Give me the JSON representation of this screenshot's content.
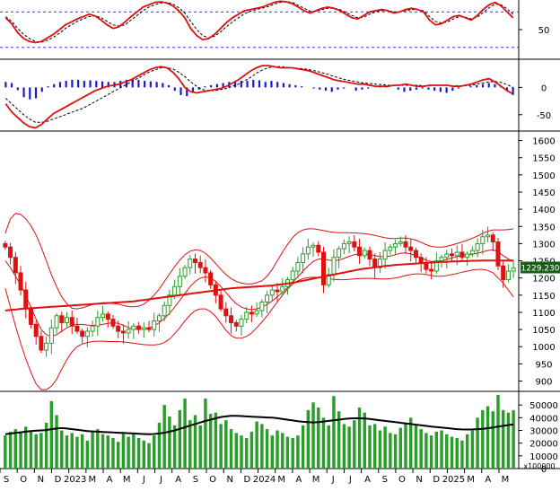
{
  "chart_data": [
    {
      "type": "line",
      "panel": "stochastic-oscillator",
      "y_ticks": [
        50
      ],
      "ylim": [
        0,
        100
      ],
      "dashed_levels": [
        80,
        20
      ],
      "series": [
        {
          "values": [
            70,
            60,
            45,
            35,
            30,
            28,
            30,
            36,
            42,
            50,
            58,
            63,
            68,
            72,
            76,
            73,
            66,
            58,
            52,
            55,
            63,
            72,
            80,
            88,
            92,
            96,
            97,
            95,
            90,
            82,
            70,
            52,
            40,
            33,
            35,
            42,
            52,
            62,
            70,
            76,
            82,
            84,
            86,
            88,
            92,
            96,
            98,
            97,
            94,
            88,
            82,
            78,
            82,
            86,
            88,
            86,
            82,
            76,
            70,
            68,
            74,
            80,
            82,
            84,
            82,
            78,
            80,
            84,
            86,
            84,
            80,
            66,
            58,
            60,
            66,
            72,
            74,
            70,
            66,
            74,
            84,
            92,
            96,
            90,
            80,
            70
          ]
        },
        {
          "values": [
            72,
            64,
            52,
            42,
            35,
            30,
            29,
            32,
            37,
            44,
            52,
            58,
            64,
            68,
            72,
            73,
            70,
            64,
            58,
            56,
            58,
            66,
            74,
            82,
            88,
            92,
            95,
            96,
            93,
            87,
            78,
            64,
            50,
            40,
            36,
            39,
            46,
            55,
            63,
            70,
            77,
            81,
            84,
            86,
            89,
            93,
            96,
            97,
            96,
            91,
            86,
            81,
            81,
            84,
            86,
            86,
            84,
            79,
            74,
            70,
            71,
            76,
            80,
            82,
            82,
            80,
            80,
            82,
            84,
            84,
            82,
            72,
            64,
            61,
            63,
            68,
            72,
            71,
            68,
            71,
            79,
            87,
            93,
            92,
            85,
            76
          ]
        }
      ]
    },
    {
      "type": "line",
      "panel": "macd",
      "y_ticks": [
        0,
        -50
      ],
      "ylim": [
        -80,
        50
      ],
      "histogram": [
        10,
        8,
        -5,
        -18,
        -22,
        -20,
        -8,
        2,
        6,
        10,
        12,
        14,
        14,
        12,
        13,
        12,
        11,
        10,
        10,
        12,
        14,
        16,
        14,
        12,
        11,
        10,
        8,
        4,
        -6,
        -14,
        -16,
        -10,
        -4,
        2,
        4,
        6,
        8,
        10,
        10,
        12,
        12,
        14,
        13,
        10,
        12,
        10,
        8,
        6,
        4,
        2,
        0,
        -2,
        -4,
        -6,
        -8,
        -4,
        -2,
        0,
        -6,
        -4,
        -2,
        0,
        2,
        1,
        0,
        -4,
        -8,
        -6,
        -4,
        -2,
        -4,
        -6,
        -8,
        -10,
        -6,
        -2,
        0,
        2,
        4,
        6,
        8,
        6,
        2,
        -6,
        -14
      ],
      "series": [
        {
          "values": [
            -30,
            -45,
            -55,
            -65,
            -72,
            -74,
            -68,
            -58,
            -48,
            -42,
            -36,
            -30,
            -24,
            -18,
            -12,
            -6,
            -2,
            2,
            4,
            6,
            10,
            14,
            20,
            26,
            32,
            36,
            38,
            36,
            28,
            16,
            0,
            -8,
            -10,
            -8,
            -6,
            -4,
            -2,
            2,
            8,
            14,
            22,
            30,
            36,
            40,
            40,
            38,
            36,
            36,
            36,
            34,
            32,
            30,
            26,
            22,
            18,
            14,
            12,
            10,
            8,
            6,
            6,
            4,
            2,
            2,
            2,
            4,
            4,
            6,
            4,
            2,
            2,
            4,
            4,
            4,
            4,
            2,
            2,
            4,
            6,
            10,
            14,
            16,
            10,
            2,
            -6,
            -12
          ]
        },
        {
          "values": [
            -20,
            -30,
            -40,
            -50,
            -58,
            -64,
            -64,
            -62,
            -58,
            -54,
            -50,
            -46,
            -42,
            -38,
            -32,
            -26,
            -20,
            -14,
            -8,
            -2,
            4,
            10,
            16,
            22,
            28,
            32,
            36,
            36,
            34,
            28,
            20,
            10,
            2,
            -4,
            -6,
            -6,
            -4,
            -2,
            2,
            6,
            12,
            18,
            26,
            32,
            36,
            38,
            38,
            37,
            36,
            35,
            34,
            32,
            30,
            27,
            24,
            20,
            17,
            14,
            12,
            10,
            8,
            7,
            6,
            5,
            4,
            4,
            4,
            4,
            4,
            4,
            3,
            3,
            4,
            4,
            4,
            3,
            3,
            3,
            4,
            6,
            8,
            10,
            11,
            9,
            5,
            0
          ]
        }
      ]
    },
    {
      "type": "candlestick",
      "panel": "price",
      "y_ticks": [
        900,
        950,
        1000,
        1050,
        1100,
        1150,
        1200,
        1250,
        1300,
        1350,
        1400,
        1450,
        1500,
        1550,
        1600
      ],
      "ylim": [
        870,
        1625
      ],
      "last_price_label": "1229.230",
      "close": [
        1290,
        1260,
        1215,
        1165,
        1110,
        1065,
        1030,
        990,
        1010,
        1055,
        1090,
        1070,
        1085,
        1060,
        1045,
        1030,
        1045,
        1060,
        1085,
        1095,
        1080,
        1060,
        1045,
        1040,
        1050,
        1060,
        1050,
        1055,
        1050,
        1075,
        1090,
        1120,
        1150,
        1175,
        1205,
        1230,
        1255,
        1245,
        1230,
        1215,
        1180,
        1150,
        1110,
        1090,
        1070,
        1060,
        1080,
        1100,
        1095,
        1105,
        1130,
        1150,
        1165,
        1160,
        1175,
        1195,
        1220,
        1245,
        1270,
        1290,
        1295,
        1275,
        1180,
        1210,
        1260,
        1285,
        1300,
        1305,
        1290,
        1265,
        1280,
        1255,
        1230,
        1255,
        1280,
        1290,
        1300,
        1305,
        1290,
        1280,
        1260,
        1245,
        1225,
        1220,
        1250,
        1260,
        1270,
        1265,
        1275,
        1260,
        1270,
        1280,
        1300,
        1320,
        1325,
        1305,
        1235,
        1195,
        1220,
        1229
      ],
      "ma_long": [
        1105,
        1107,
        1108,
        1110,
        1111,
        1112,
        1113,
        1114,
        1115,
        1116,
        1117,
        1118,
        1119,
        1120,
        1121,
        1122,
        1123,
        1124,
        1125,
        1126,
        1127,
        1128,
        1129,
        1130,
        1131,
        1132,
        1134,
        1136,
        1138,
        1140,
        1142,
        1144,
        1146,
        1148,
        1150,
        1152,
        1154,
        1156,
        1158,
        1160,
        1162,
        1164,
        1166,
        1168,
        1170,
        1171,
        1172,
        1173,
        1174,
        1175,
        1176,
        1177,
        1178,
        1180,
        1182,
        1184,
        1186,
        1189,
        1192,
        1195,
        1198,
        1201,
        1204,
        1207,
        1210,
        1213,
        1216,
        1219,
        1222,
        1225,
        1227,
        1229,
        1231,
        1233,
        1235,
        1236,
        1238,
        1239,
        1240,
        1241,
        1242,
        1243,
        1244,
        1245,
        1246,
        1247,
        1247,
        1248,
        1248,
        1249,
        1249,
        1250,
        1250,
        1251,
        1251,
        1251,
        1251,
        1251,
        1251,
        1251
      ],
      "ma_short": [
        1250,
        1230,
        1205,
        1180,
        1150,
        1115,
        1080,
        1050,
        1035,
        1030,
        1035,
        1045,
        1055,
        1062,
        1065,
        1065,
        1063,
        1062,
        1063,
        1065,
        1068,
        1070,
        1068,
        1062,
        1056,
        1052,
        1052,
        1053,
        1055,
        1060,
        1070,
        1082,
        1097,
        1115,
        1135,
        1155,
        1175,
        1190,
        1200,
        1203,
        1200,
        1190,
        1175,
        1158,
        1140,
        1125,
        1115,
        1110,
        1108,
        1110,
        1115,
        1123,
        1133,
        1145,
        1158,
        1172,
        1188,
        1203,
        1220,
        1235,
        1248,
        1255,
        1255,
        1252,
        1250,
        1252,
        1257,
        1263,
        1268,
        1270,
        1270,
        1268,
        1265,
        1262,
        1262,
        1264,
        1268,
        1272,
        1273,
        1270,
        1265,
        1258,
        1252,
        1248,
        1248,
        1250,
        1254,
        1258,
        1262,
        1265,
        1267,
        1269,
        1272,
        1276,
        1280,
        1282,
        1276,
        1265,
        1255,
        1248
      ],
      "bb_upper": [
        1330,
        1372,
        1388,
        1385,
        1372,
        1352,
        1325,
        1290,
        1250,
        1210,
        1175,
        1145,
        1125,
        1112,
        1110,
        1113,
        1118,
        1123,
        1126,
        1128,
        1128,
        1126,
        1124,
        1120,
        1117,
        1116,
        1118,
        1124,
        1135,
        1150,
        1168,
        1190,
        1212,
        1233,
        1252,
        1268,
        1278,
        1282,
        1280,
        1272,
        1258,
        1242,
        1225,
        1210,
        1198,
        1190,
        1185,
        1183,
        1183,
        1186,
        1192,
        1205,
        1225,
        1250,
        1275,
        1298,
        1318,
        1332,
        1340,
        1343,
        1343,
        1341,
        1338,
        1335,
        1333,
        1332,
        1332,
        1332,
        1331,
        1330,
        1329,
        1327,
        1324,
        1320,
        1317,
        1315,
        1315,
        1316,
        1316,
        1314,
        1310,
        1304,
        1297,
        1292,
        1290,
        1290,
        1292,
        1296,
        1300,
        1305,
        1310,
        1316,
        1322,
        1330,
        1336,
        1340,
        1340,
        1340,
        1341,
        1343
      ],
      "bb_lower": [
        1170,
        1115,
        1060,
        1010,
        965,
        925,
        892,
        875,
        875,
        885,
        905,
        935,
        962,
        985,
        1000,
        1008,
        1012,
        1015,
        1016,
        1016,
        1015,
        1015,
        1015,
        1014,
        1012,
        1010,
        1008,
        1006,
        1005,
        1005,
        1007,
        1012,
        1022,
        1038,
        1055,
        1075,
        1092,
        1105,
        1110,
        1110,
        1102,
        1088,
        1068,
        1048,
        1032,
        1025,
        1025,
        1030,
        1040,
        1055,
        1072,
        1090,
        1110,
        1130,
        1150,
        1168,
        1182,
        1192,
        1198,
        1201,
        1202,
        1202,
        1200,
        1198,
        1196,
        1195,
        1195,
        1196,
        1197,
        1198,
        1199,
        1199,
        1198,
        1197,
        1197,
        1198,
        1200,
        1203,
        1207,
        1210,
        1212,
        1212,
        1210,
        1207,
        1205,
        1205,
        1207,
        1210,
        1213,
        1217,
        1220,
        1223,
        1225,
        1225,
        1222,
        1215,
        1200,
        1185,
        1165,
        1145
      ],
      "x_ticks": [
        "S",
        "O",
        "N",
        "D",
        "2023",
        "M",
        "A",
        "M",
        "J",
        "J",
        "A",
        "S",
        "O",
        "N",
        "D",
        "2024",
        "M",
        "A",
        "M",
        "J",
        "J",
        "A",
        "S",
        "O",
        "N",
        "D",
        "2025",
        "M",
        "A",
        "M"
      ]
    },
    {
      "type": "bar",
      "panel": "volume",
      "y_ticks": [
        0,
        10000,
        20000,
        30000,
        40000,
        50000
      ],
      "ylim": [
        0,
        60000
      ],
      "unit_label": "x100000",
      "values": [
        26000,
        29000,
        31000,
        28000,
        33000,
        30000,
        27000,
        28000,
        36000,
        53000,
        42000,
        30000,
        26000,
        28000,
        25000,
        27000,
        22000,
        29000,
        31000,
        27000,
        26000,
        24000,
        21000,
        28000,
        25000,
        27000,
        24000,
        22000,
        20000,
        26000,
        36000,
        50000,
        41000,
        34000,
        46000,
        55000,
        38000,
        42000,
        34000,
        55000,
        43000,
        44000,
        35000,
        38000,
        31000,
        28000,
        26000,
        24000,
        29000,
        37000,
        35000,
        31000,
        26000,
        30000,
        28000,
        25000,
        24000,
        26000,
        34000,
        46000,
        52000,
        48000,
        40000,
        34000,
        57000,
        45000,
        35000,
        33000,
        38000,
        48000,
        44000,
        34000,
        35000,
        30000,
        33000,
        28000,
        27000,
        32000,
        35000,
        40000,
        34000,
        31000,
        28000,
        26000,
        29000,
        30000,
        27000,
        25000,
        24000,
        22000,
        27000,
        30000,
        40000,
        46000,
        49000,
        45000,
        58000,
        46000,
        44000,
        46000
      ],
      "series": [
        {
          "values": [
            27000,
            27500,
            28000,
            28500,
            29000,
            29500,
            29800,
            30000,
            30300,
            31000,
            31500,
            31800,
            31500,
            31000,
            30500,
            30000,
            29500,
            29200,
            29000,
            28800,
            28600,
            28400,
            28200,
            28000,
            27800,
            27600,
            27400,
            27200,
            27000,
            27200,
            27600,
            28200,
            29000,
            30000,
            31200,
            32500,
            33800,
            35000,
            36200,
            37500,
            38500,
            39500,
            40500,
            41000,
            41500,
            41500,
            41300,
            41000,
            40800,
            40600,
            40400,
            40200,
            40000,
            39600,
            39000,
            38400,
            37800,
            37200,
            36800,
            36500,
            36300,
            36500,
            37000,
            37500,
            38000,
            38500,
            39000,
            39300,
            39500,
            39500,
            39300,
            39000,
            38500,
            38000,
            37500,
            37000,
            36500,
            36000,
            35500,
            35000,
            34500,
            34000,
            33500,
            33000,
            32600,
            32200,
            31800,
            31400,
            31000,
            30800,
            30700,
            30800,
            31000,
            31300,
            31700,
            32300,
            33000,
            33600,
            34200,
            34800
          ]
        }
      ]
    }
  ]
}
